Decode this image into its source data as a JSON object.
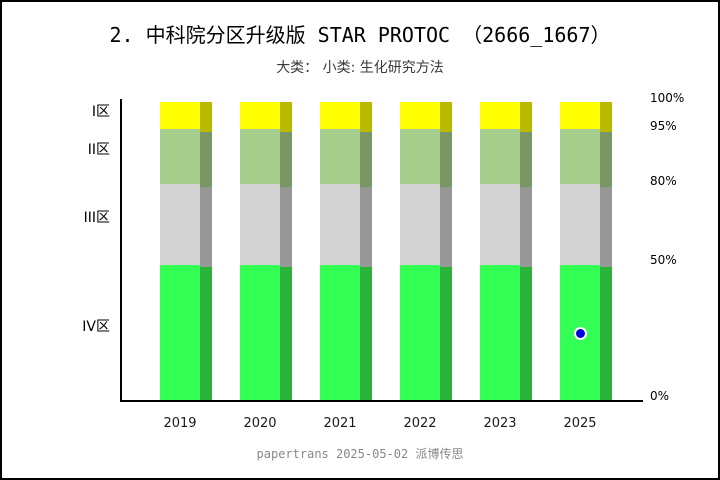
{
  "window": {
    "background": "#ffffff",
    "border_color": "#000000"
  },
  "footer": "papertrans 2025-05-02 派博传思",
  "chart_data": {
    "type": "bar",
    "stacked": true,
    "title": "2. 中科院分区升级版 STAR PROTOC （2666_1667）",
    "subtitle": "大类：  小类: 生化研究方法",
    "categories": [
      "2019",
      "2020",
      "2021",
      "2022",
      "2023",
      "2025"
    ],
    "series": [
      {
        "name": "I区",
        "zone_range": "100%-95%",
        "color": "#FFFF00",
        "shadow_color": "#B9B900",
        "values": [
          5,
          5,
          5,
          5,
          5,
          5
        ]
      },
      {
        "name": "II区",
        "zone_range": "95%-80%",
        "color": "#A8CE8D",
        "shadow_color": "#7A9664",
        "values": [
          15,
          15,
          15,
          15,
          15,
          15
        ]
      },
      {
        "name": "III区",
        "zone_range": "80%-50%",
        "color": "#D3D3D3",
        "shadow_color": "#979797",
        "values": [
          30,
          30,
          30,
          30,
          30,
          30
        ]
      },
      {
        "name": "IV区",
        "zone_range": "50%-0%",
        "color": "#33FF55",
        "shadow_color": "#2BB33C",
        "values": [
          50,
          50,
          50,
          50,
          50,
          50
        ]
      }
    ],
    "left_axis_labels": [
      "I区",
      "II区",
      "III区",
      "IV区"
    ],
    "right_axis_ticks": [
      "100%",
      "95%",
      "80%",
      "50%",
      "0%"
    ],
    "marker": {
      "category": "2025",
      "zone": "IV区",
      "color": "#0000DD",
      "outline_color": "#FFFFFF"
    },
    "legend": "none",
    "grid": "off",
    "ylim_percent": [
      0,
      100
    ],
    "xlabel": "",
    "ylabel": ""
  }
}
